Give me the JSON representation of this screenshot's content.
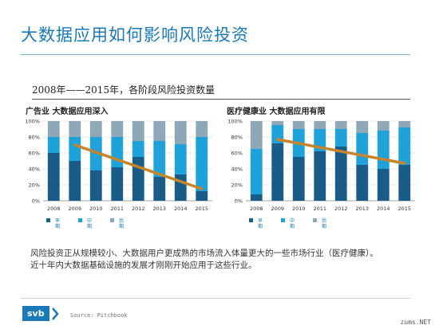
{
  "page": {
    "title": "大数据应用如何影响风险投资",
    "subtitle": "2008年——2015年，各阶段风险投资数量",
    "caption_lines": [
      "风险投资正从规模较小、大数据用户更成熟的市场流入体量更大的一些市场行业（医疗健康）。",
      "近十年内大数据基础设施的发展才刚刚开始应用于这些行业。"
    ],
    "source": "Source: Pitchbook",
    "logo": "svb",
    "watermark": "zums.NET"
  },
  "colors": {
    "title": "#1b79b6",
    "early": "#1a5c88",
    "mid": "#1fa2d9",
    "late": "#8fa8b8",
    "trend": "#c8842a"
  },
  "chart_data": [
    {
      "type": "bar",
      "stacked": true,
      "title": "广告业 大数据应用深入",
      "categories": [
        "2008",
        "2009",
        "2010",
        "2011",
        "2012",
        "2013",
        "2014",
        "2015"
      ],
      "y_ticks": [
        "0%",
        "20%",
        "40%",
        "60%",
        "80%",
        "100%"
      ],
      "ylim": [
        0,
        100
      ],
      "grid": true,
      "series": [
        {
          "name": "早期",
          "values": [
            60,
            50,
            38,
            42,
            55,
            30,
            33,
            12
          ]
        },
        {
          "name": "中期",
          "values": [
            20,
            30,
            42,
            38,
            20,
            45,
            38,
            68
          ]
        },
        {
          "name": "后期",
          "values": [
            20,
            20,
            20,
            20,
            25,
            25,
            29,
            20
          ]
        }
      ],
      "trend_line": {
        "from": [
          "2009",
          70
        ],
        "to": [
          "2015",
          15
        ]
      }
    },
    {
      "type": "bar",
      "stacked": true,
      "title": "医疗健康业 大数据应用有限",
      "categories": [
        "2008",
        "2009",
        "2010",
        "2011",
        "2012",
        "2013",
        "2014",
        "2015"
      ],
      "y_ticks": [
        "0%",
        "20%",
        "40%",
        "60%",
        "80%",
        "100%"
      ],
      "ylim": [
        0,
        100
      ],
      "grid": true,
      "series": [
        {
          "name": "早期",
          "values": [
            8,
            72,
            55,
            62,
            68,
            45,
            40,
            45
          ]
        },
        {
          "name": "中期",
          "values": [
            57,
            23,
            35,
            28,
            22,
            40,
            48,
            47
          ]
        },
        {
          "name": "后期",
          "values": [
            35,
            5,
            10,
            10,
            10,
            15,
            12,
            8
          ]
        }
      ],
      "trend_line": {
        "from": [
          "2009",
          77
        ],
        "to": [
          "2015",
          47
        ]
      }
    }
  ]
}
